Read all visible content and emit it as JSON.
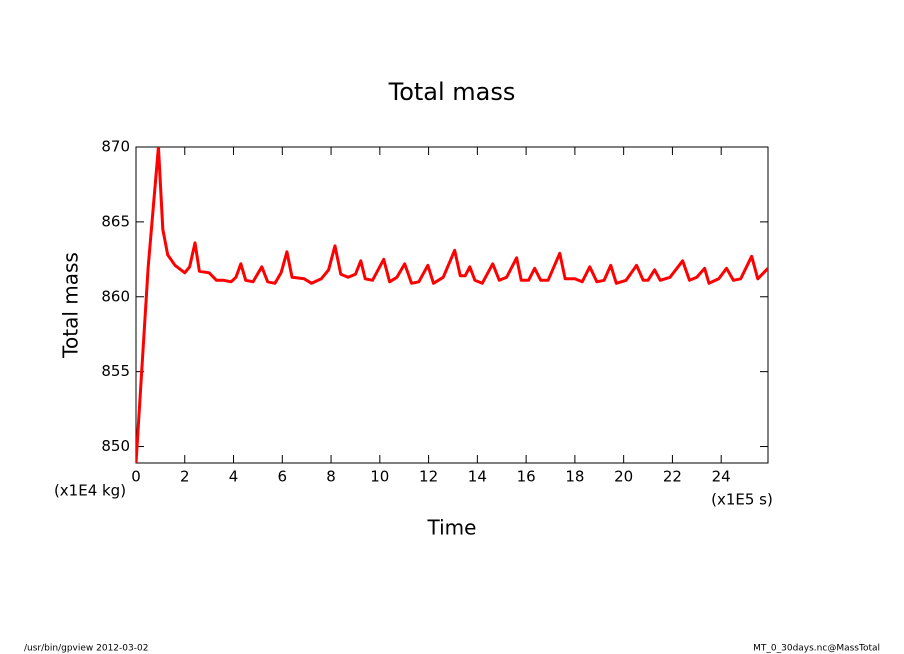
{
  "chart_data": {
    "type": "line",
    "title": "Total mass",
    "x_label": "Time",
    "y_label": "Total mass",
    "x_unit": "(x1E5 s)",
    "y_unit": "(x1E4 kg)",
    "footer_left": "/usr/bin/gpview  2012-03-02",
    "footer_right": "MT_0_30days.nc@MassTotal",
    "xlim": [
      0,
      25.92
    ],
    "ylim": [
      848.9,
      870
    ],
    "xticks": [
      0,
      2,
      4,
      6,
      8,
      10,
      12,
      14,
      16,
      18,
      20,
      22,
      24
    ],
    "yticks": [
      850,
      855,
      860,
      865,
      870
    ],
    "series": [
      {
        "name": "Total mass",
        "color": "#ff0000",
        "x": [
          0,
          0.5,
          0.92,
          1.1,
          1.3,
          1.6,
          2.0,
          2.2,
          2.42,
          2.6,
          3.0,
          3.3,
          3.6,
          3.9,
          4.1,
          4.3,
          4.5,
          4.8,
          5.16,
          5.4,
          5.7,
          5.95,
          6.19,
          6.4,
          6.9,
          7.2,
          7.6,
          7.9,
          8.16,
          8.4,
          8.7,
          9.0,
          9.22,
          9.4,
          9.7,
          10.16,
          10.4,
          10.7,
          11.02,
          11.3,
          11.6,
          11.97,
          12.2,
          12.6,
          13.07,
          13.3,
          13.5,
          13.69,
          13.9,
          14.2,
          14.63,
          14.9,
          15.2,
          15.61,
          15.8,
          16.1,
          16.35,
          16.6,
          16.9,
          17.38,
          17.6,
          18.0,
          18.3,
          18.61,
          18.9,
          19.2,
          19.47,
          19.7,
          20.1,
          20.53,
          20.8,
          21.0,
          21.27,
          21.5,
          21.9,
          22.42,
          22.7,
          23.0,
          23.32,
          23.5,
          23.9,
          24.22,
          24.5,
          24.8,
          25.25,
          25.5,
          25.92
        ],
        "values": [
          848.9,
          862,
          870,
          864.5,
          862.8,
          862.1,
          861.6,
          862.0,
          863.6,
          861.7,
          861.6,
          861.1,
          861.1,
          861.0,
          861.3,
          862.2,
          861.1,
          861.0,
          862.0,
          861.0,
          860.9,
          861.6,
          863.0,
          861.3,
          861.2,
          860.9,
          861.2,
          861.8,
          863.4,
          861.5,
          861.3,
          861.5,
          862.4,
          861.2,
          861.1,
          862.5,
          861.0,
          861.3,
          862.2,
          860.9,
          861.0,
          862.1,
          860.9,
          861.3,
          863.1,
          861.4,
          861.4,
          862.0,
          861.1,
          860.9,
          862.2,
          861.1,
          861.3,
          862.6,
          861.1,
          861.1,
          861.9,
          861.1,
          861.1,
          862.9,
          861.2,
          861.2,
          861.0,
          862.0,
          861.0,
          861.1,
          862.1,
          860.9,
          861.1,
          862.1,
          861.1,
          861.1,
          861.8,
          861.1,
          861.3,
          862.4,
          861.1,
          861.3,
          861.9,
          860.9,
          861.2,
          861.9,
          861.1,
          861.2,
          862.7,
          861.2,
          861.9
        ]
      }
    ]
  }
}
